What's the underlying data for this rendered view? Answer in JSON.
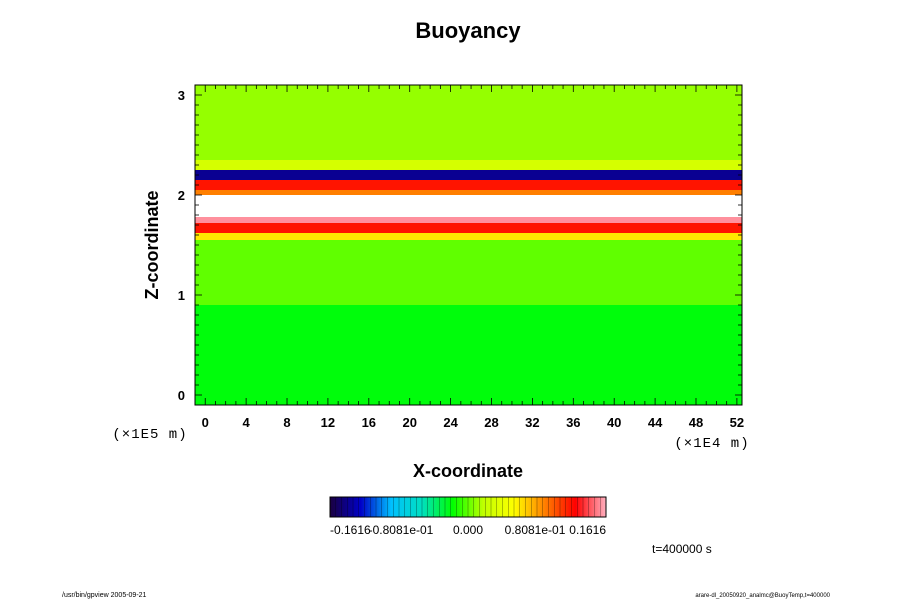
{
  "chart_data": {
    "type": "heatmap",
    "title": "Buoyancy",
    "xlabel": "X-coordinate",
    "ylabel": "Z-coordinate",
    "x_unit": "(×1E4 m)",
    "y_unit": "(×1E5 m)",
    "xlim": [
      -1,
      52.5
    ],
    "ylim": [
      -0.1,
      3.1
    ],
    "x_ticks": [
      0,
      4,
      8,
      12,
      16,
      20,
      24,
      28,
      32,
      36,
      40,
      44,
      48,
      52
    ],
    "y_ticks": [
      0,
      1,
      2,
      3
    ],
    "colorbar": {
      "min": -0.1616,
      "max": 0.1616,
      "tick_labels": [
        "-0.1616",
        "-0.8081e-01",
        "0.000",
        "0.8081e-01",
        "0.1616"
      ],
      "tick_values": [
        -0.1616,
        -0.08081,
        0.0,
        0.08081,
        0.1616
      ],
      "colormap": [
        "#1a0040",
        "#0000c8",
        "#00c0ff",
        "#00e0c0",
        "#00ff00",
        "#c0ff00",
        "#ffff00",
        "#ff8000",
        "#ff0000",
        "#ffb0c0"
      ]
    },
    "field_bands": [
      {
        "z": [
          -0.1,
          0.9
        ],
        "value": -0.02,
        "note": "lower layer"
      },
      {
        "z": [
          0.9,
          1.55
        ],
        "value": 0.0
      },
      {
        "z": [
          1.55,
          1.62
        ],
        "value": 0.06
      },
      {
        "z": [
          1.62,
          1.72
        ],
        "value": 0.12
      },
      {
        "z": [
          1.72,
          1.78
        ],
        "value": 0.155
      },
      {
        "z": [
          1.78,
          2.0
        ],
        "value": 0.25,
        "note": "saturated white band"
      },
      {
        "z": [
          2.0,
          2.05
        ],
        "value": 0.09
      },
      {
        "z": [
          2.05,
          2.15
        ],
        "value": 0.12
      },
      {
        "z": [
          2.15,
          2.25
        ],
        "value": -0.14
      },
      {
        "z": [
          2.25,
          2.35
        ],
        "value": 0.03
      },
      {
        "z": [
          2.35,
          3.1
        ],
        "value": 0.01
      }
    ],
    "grid": false,
    "legend": "colorbar bottom-center"
  },
  "annotations": {
    "time": "t=400000 s",
    "footer_left": "/usr/bin/gpview 2005-09-21",
    "footer_right": "arare-dl_20050920_analmc@BuoyTemp,t=400000"
  }
}
